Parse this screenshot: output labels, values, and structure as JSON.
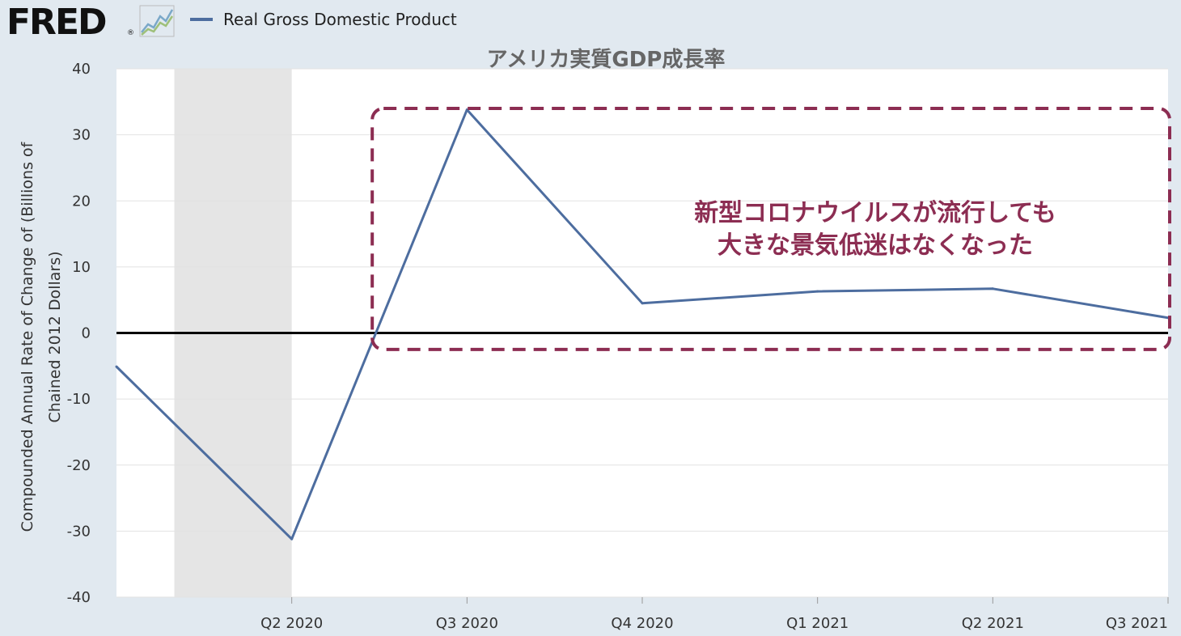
{
  "header": {
    "logo_text": "FRED",
    "logo_reg": "®",
    "legend_label": "Real Gross Domestic Product",
    "graph_icon": "line-graph-icon"
  },
  "colors": {
    "background": "#e1e9f0",
    "plot_bg": "#ffffff",
    "series": "#4d6d9f",
    "recession": "#e5e5e5",
    "zero_line": "#000000",
    "annotation": "#8c2d52",
    "title": "#666666"
  },
  "chart_data": {
    "type": "line",
    "title": "アメリカ実質GDP成長率",
    "xlabel": "",
    "ylabel_lines": [
      "Compounded Annual Rate of Change of (Billions of",
      "Chained 2012 Dollars)"
    ],
    "ylim": [
      -40,
      40
    ],
    "yticks": [
      40,
      30,
      20,
      10,
      0,
      -10,
      -20,
      -30,
      -40
    ],
    "x_labels": [
      "Q2 2020",
      "Q3 2020",
      "Q4 2020",
      "Q1 2021",
      "Q2 2021",
      "Q3 2021"
    ],
    "x_label_positions": [
      2,
      3,
      4,
      5,
      6,
      7
    ],
    "xlim": [
      1,
      7
    ],
    "recession_shading": [
      1.33,
      2.0
    ],
    "series": [
      {
        "name": "Real Gross Domestic Product",
        "x": [
          1,
          2,
          3,
          4,
          5,
          6,
          7
        ],
        "values": [
          -5.1,
          -31.2,
          33.8,
          4.5,
          6.3,
          6.7,
          2.3
        ]
      }
    ],
    "annotation": {
      "lines": [
        "新型コロナウイルスが流行しても",
        "大きな景気低迷はなくなった"
      ],
      "box_x_range": [
        2.45,
        7.0
      ],
      "box_y_range": [
        -2.5,
        34
      ]
    },
    "grid": true,
    "legend": "top-left"
  }
}
